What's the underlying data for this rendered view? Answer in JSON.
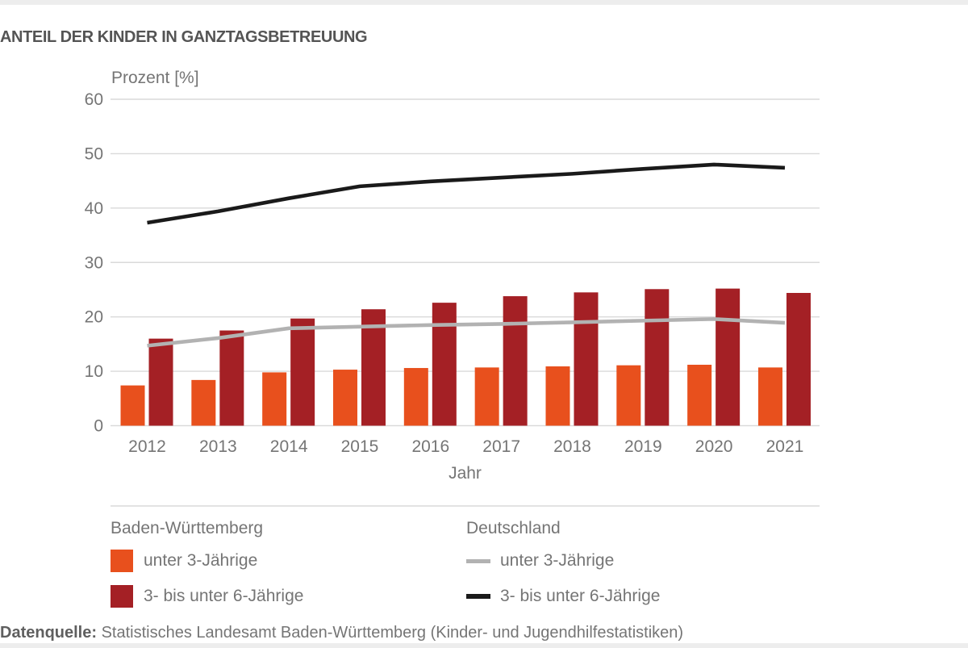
{
  "page": {
    "title": "ANTEIL DER KINDER IN GANZTAGSBETREUUNG",
    "source_label": "Datenquelle:",
    "source_text": "Statistisches Landesamt Baden-Württemberg (Kinder- und Jugendhilfestatistiken)"
  },
  "chart_data": {
    "type": "bar",
    "subtype": "grouped-bars-with-lines",
    "title": "ANTEIL DER KINDER IN GANZTAGSBETREUUNG",
    "ylabel": "Prozent [%]",
    "xlabel": "Jahr",
    "ylim": [
      0,
      60
    ],
    "ytick_step": 10,
    "grid": true,
    "legend_position": "bottom",
    "categories": [
      "2012",
      "2013",
      "2014",
      "2015",
      "2016",
      "2017",
      "2018",
      "2019",
      "2020",
      "2021"
    ],
    "series": [
      {
        "name": "Baden-Württemberg unter 3-Jährige",
        "kind": "bar",
        "color_key": "orange",
        "values": [
          7.4,
          8.4,
          9.8,
          10.3,
          10.6,
          10.7,
          10.9,
          11.1,
          11.2,
          10.7
        ]
      },
      {
        "name": "Baden-Württemberg 3- bis unter 6-Jährige",
        "kind": "bar",
        "color_key": "dark_red",
        "values": [
          16.0,
          17.5,
          19.7,
          21.4,
          22.6,
          23.8,
          24.5,
          25.1,
          25.2,
          24.4
        ]
      },
      {
        "name": "Deutschland unter 3-Jährige",
        "kind": "line",
        "color_key": "gray_line",
        "values": [
          14.7,
          16.1,
          17.9,
          18.2,
          18.5,
          18.7,
          19.0,
          19.3,
          19.6,
          18.9
        ]
      },
      {
        "name": "Deutschland 3- bis unter 6-Jährige",
        "kind": "line",
        "color_key": "black_line",
        "values": [
          37.3,
          39.4,
          41.8,
          44.0,
          44.9,
          45.6,
          46.3,
          47.2,
          48.0,
          47.4
        ]
      }
    ]
  },
  "legend": {
    "left_header": "Baden-Württemberg",
    "right_header": "Deutschland",
    "left_items": [
      {
        "label": "unter 3-Jährige",
        "color_key": "orange"
      },
      {
        "label": "3- bis unter 6-Jährige",
        "color_key": "dark_red"
      }
    ],
    "right_items": [
      {
        "label": "unter 3-Jährige",
        "color_key": "gray_line"
      },
      {
        "label": "3- bis unter 6-Jährige",
        "color_key": "black_line"
      }
    ]
  },
  "colors": {
    "orange": "#E8501D",
    "dark_red": "#A42025",
    "gray_line": "#B2B2B2",
    "black_line": "#1A1A1A",
    "grid": "#DADADA",
    "axis_text": "#757575",
    "title_text": "#545454",
    "band": "#EDEDED"
  }
}
